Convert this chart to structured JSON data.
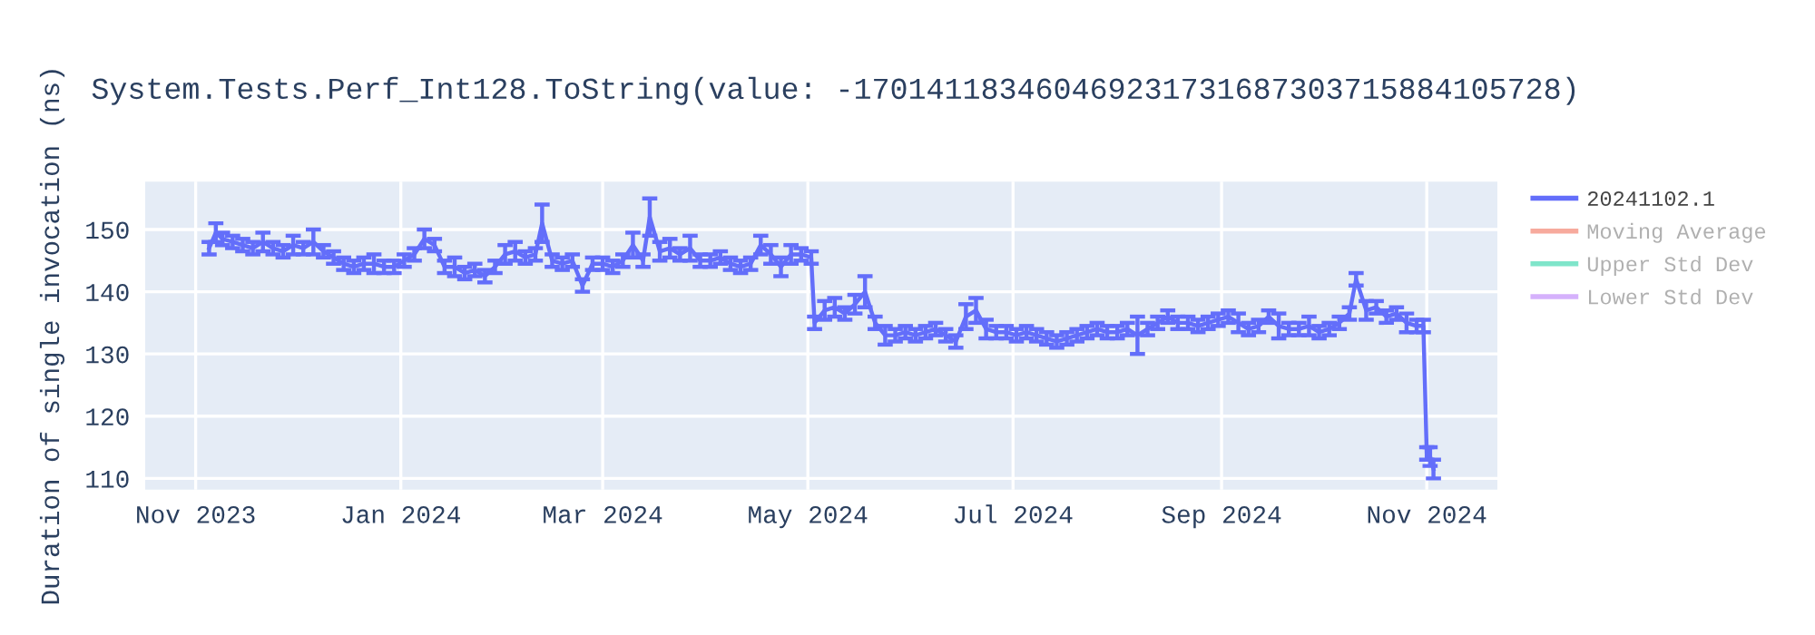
{
  "chart_data": {
    "type": "line",
    "title": "System.Tests.Perf_Int128.ToString(value: -170141183460469231731687303715884105728)",
    "ylabel": "Duration of single invocation (ns)",
    "x": [
      "2023-11-05",
      "2023-11-07",
      "2023-11-09",
      "2023-11-12",
      "2023-11-15",
      "2023-11-18",
      "2023-11-21",
      "2023-11-24",
      "2023-11-27",
      "2023-11-30",
      "2023-12-03",
      "2023-12-06",
      "2023-12-09",
      "2023-12-12",
      "2023-12-15",
      "2023-12-18",
      "2023-12-21",
      "2023-12-24",
      "2023-12-27",
      "2023-12-30",
      "2024-01-02",
      "2024-01-05",
      "2024-01-08",
      "2024-01-11",
      "2024-01-14",
      "2024-01-17",
      "2024-01-20",
      "2024-01-23",
      "2024-01-26",
      "2024-01-29",
      "2024-02-01",
      "2024-02-04",
      "2024-02-07",
      "2024-02-10",
      "2024-02-12",
      "2024-02-15",
      "2024-02-18",
      "2024-02-21",
      "2024-02-24",
      "2024-02-27",
      "2024-03-01",
      "2024-03-04",
      "2024-03-07",
      "2024-03-10",
      "2024-03-13",
      "2024-03-15",
      "2024-03-18",
      "2024-03-21",
      "2024-03-24",
      "2024-03-27",
      "2024-03-30",
      "2024-04-02",
      "2024-04-05",
      "2024-04-08",
      "2024-04-11",
      "2024-04-14",
      "2024-04-17",
      "2024-04-20",
      "2024-04-23",
      "2024-04-26",
      "2024-04-29",
      "2024-05-02",
      "2024-05-03",
      "2024-05-06",
      "2024-05-09",
      "2024-05-12",
      "2024-05-15",
      "2024-05-18",
      "2024-05-21",
      "2024-05-24",
      "2024-05-27",
      "2024-05-30",
      "2024-06-02",
      "2024-06-05",
      "2024-06-08",
      "2024-06-11",
      "2024-06-14",
      "2024-06-17",
      "2024-06-20",
      "2024-06-23",
      "2024-06-26",
      "2024-06-29",
      "2024-07-02",
      "2024-07-05",
      "2024-07-08",
      "2024-07-11",
      "2024-07-14",
      "2024-07-17",
      "2024-07-20",
      "2024-07-23",
      "2024-07-26",
      "2024-07-29",
      "2024-08-01",
      "2024-08-04",
      "2024-08-07",
      "2024-08-10",
      "2024-08-13",
      "2024-08-16",
      "2024-08-19",
      "2024-08-22",
      "2024-08-25",
      "2024-08-28",
      "2024-08-31",
      "2024-09-03",
      "2024-09-06",
      "2024-09-09",
      "2024-09-12",
      "2024-09-15",
      "2024-09-18",
      "2024-09-21",
      "2024-09-24",
      "2024-09-27",
      "2024-09-30",
      "2024-10-03",
      "2024-10-06",
      "2024-10-09",
      "2024-10-11",
      "2024-10-14",
      "2024-10-17",
      "2024-10-20",
      "2024-10-23",
      "2024-10-26",
      "2024-10-29",
      "2024-10-31",
      "2024-11-01",
      "2024-11-02",
      "2024-11-03"
    ],
    "series": [
      {
        "name": "20241102.1",
        "color": "#636efa",
        "values": [
          147,
          149.5,
          148.5,
          148,
          147.5,
          147,
          148,
          147,
          146.5,
          147.5,
          147,
          148,
          146.5,
          145.5,
          144.5,
          144,
          144.5,
          144.5,
          144,
          144,
          145,
          146,
          148.5,
          147.5,
          144,
          144,
          143,
          143.5,
          142.5,
          144,
          146,
          146.5,
          145.5,
          146,
          151,
          145,
          144.5,
          145,
          141,
          144.5,
          144.5,
          144,
          145,
          147.5,
          145,
          152,
          146.5,
          147,
          146,
          147,
          145,
          145,
          145.5,
          144.5,
          144,
          144.5,
          147.5,
          146,
          144,
          146,
          146,
          145.5,
          135,
          137,
          137.5,
          136.5,
          138,
          140,
          135,
          133,
          133,
          133.5,
          133,
          133.5,
          134,
          133,
          132,
          136,
          137,
          134,
          133.5,
          133.5,
          133,
          133.5,
          133,
          132.5,
          132,
          132.5,
          133,
          133.5,
          134,
          133.5,
          133.5,
          134,
          133,
          134,
          135,
          136,
          135,
          135,
          134.5,
          135,
          135.5,
          136,
          135,
          134,
          134.5,
          136,
          134.5,
          134,
          134,
          134.5,
          133.5,
          134,
          135,
          136.5,
          142,
          137,
          137.5,
          136,
          136.5,
          135,
          134.5,
          134.5,
          114,
          113.5,
          111.5
        ],
        "errors": [
          1,
          1.5,
          1,
          1,
          1,
          1,
          1.5,
          1,
          1,
          1.5,
          1,
          2,
          1,
          1,
          1,
          1,
          1,
          1.5,
          1,
          1,
          1,
          1,
          1.5,
          1,
          1,
          1.5,
          1,
          1,
          1,
          1,
          1.5,
          1.5,
          1,
          1,
          3,
          1,
          1,
          1,
          1,
          1,
          1,
          1,
          1,
          2,
          1,
          3,
          1.5,
          1.5,
          1,
          2,
          1,
          1,
          1,
          1,
          1,
          1,
          1.5,
          1.5,
          1.5,
          1.5,
          1,
          1,
          1,
          1.5,
          1.5,
          1,
          1.5,
          2.5,
          1,
          1.5,
          1,
          1,
          1,
          1,
          1,
          1,
          1,
          2,
          2,
          1.5,
          1,
          1,
          1,
          1,
          1,
          1,
          1,
          1,
          1,
          1,
          1,
          1,
          1,
          1,
          3,
          1,
          1,
          1,
          1,
          1,
          1,
          1,
          1,
          1,
          1.5,
          1,
          1,
          1,
          2,
          1,
          1,
          1.5,
          1,
          1,
          1,
          1,
          1,
          1.5,
          1,
          1,
          1,
          1.5,
          1,
          1,
          1,
          1.5,
          1.5
        ]
      },
      {
        "name": "Moving Average",
        "color": "#ef553b",
        "values": [
          null,
          null,
          null,
          null,
          null,
          null,
          null,
          null,
          null,
          null,
          null,
          null,
          null,
          null,
          null,
          null,
          null,
          null,
          null,
          null,
          null,
          null,
          null,
          null,
          null,
          null,
          null,
          null,
          null,
          null,
          null,
          null,
          null,
          null,
          null,
          null,
          null,
          null,
          null,
          null,
          null,
          null,
          null,
          null,
          null,
          null,
          null,
          null,
          null,
          null,
          null,
          null,
          null,
          null,
          null,
          null,
          null,
          null,
          null,
          null,
          null,
          null,
          null,
          null,
          null,
          null,
          null,
          null,
          null,
          null,
          null,
          null,
          null,
          null,
          null,
          null,
          null,
          null,
          null,
          null,
          null,
          null,
          null,
          null,
          null,
          null,
          null,
          null,
          null,
          null,
          null,
          null,
          null,
          null,
          null,
          null,
          null,
          null,
          null,
          null,
          null,
          null,
          null,
          null,
          null,
          null,
          null,
          null,
          null,
          null,
          null,
          null,
          null,
          null,
          null,
          null,
          null,
          null,
          null,
          null,
          null,
          null,
          null,
          null,
          null,
          null,
          null
        ]
      },
      {
        "name": "Upper Std Dev",
        "color": "#00cc96",
        "values": [
          null,
          null,
          null,
          null,
          null,
          null,
          null,
          null,
          null,
          null,
          null,
          null,
          null,
          null,
          null,
          null,
          null,
          null,
          null,
          null,
          null,
          null,
          null,
          null,
          null,
          null,
          null,
          null,
          null,
          null,
          null,
          null,
          null,
          null,
          null,
          null,
          null,
          null,
          null,
          null,
          null,
          null,
          null,
          null,
          null,
          null,
          null,
          null,
          null,
          null,
          null,
          null,
          null,
          null,
          null,
          null,
          null,
          null,
          null,
          null,
          null,
          null,
          null,
          null,
          null,
          null,
          null,
          null,
          null,
          null,
          null,
          null,
          null,
          null,
          null,
          null,
          null,
          null,
          null,
          null,
          null,
          null,
          null,
          null,
          null,
          null,
          null,
          null,
          null,
          null,
          null,
          null,
          null,
          null,
          null,
          null,
          null,
          null,
          null,
          null,
          null,
          null,
          null,
          null,
          null,
          null,
          null,
          null,
          null,
          null,
          null,
          null,
          null,
          null,
          null,
          null,
          null,
          null,
          null,
          null,
          null,
          null,
          null,
          null,
          null,
          null,
          null
        ]
      },
      {
        "name": "Lower Std Dev",
        "color": "#ab63fa",
        "values": [
          null,
          null,
          null,
          null,
          null,
          null,
          null,
          null,
          null,
          null,
          null,
          null,
          null,
          null,
          null,
          null,
          null,
          null,
          null,
          null,
          null,
          null,
          null,
          null,
          null,
          null,
          null,
          null,
          null,
          null,
          null,
          null,
          null,
          null,
          null,
          null,
          null,
          null,
          null,
          null,
          null,
          null,
          null,
          null,
          null,
          null,
          null,
          null,
          null,
          null,
          null,
          null,
          null,
          null,
          null,
          null,
          null,
          null,
          null,
          null,
          null,
          null,
          null,
          null,
          null,
          null,
          null,
          null,
          null,
          null,
          null,
          null,
          null,
          null,
          null,
          null,
          null,
          null,
          null,
          null,
          null,
          null,
          null,
          null,
          null,
          null,
          null,
          null,
          null,
          null,
          null,
          null,
          null,
          null,
          null,
          null,
          null,
          null,
          null,
          null,
          null,
          null,
          null,
          null,
          null,
          null,
          null,
          null,
          null,
          null,
          null,
          null,
          null,
          null,
          null,
          null,
          null,
          null,
          null,
          null,
          null,
          null,
          null,
          null,
          null,
          null,
          null
        ]
      }
    ],
    "xlim": [
      "2023-10-17",
      "2024-11-22"
    ],
    "xticks": [
      {
        "value": "2023-11-01",
        "label": "Nov 2023"
      },
      {
        "value": "2024-01-01",
        "label": "Jan 2024"
      },
      {
        "value": "2024-03-01",
        "label": "Mar 2024"
      },
      {
        "value": "2024-05-01",
        "label": "May 2024"
      },
      {
        "value": "2024-07-01",
        "label": "Jul 2024"
      },
      {
        "value": "2024-09-01",
        "label": "Sep 2024"
      },
      {
        "value": "2024-11-01",
        "label": "Nov 2024"
      }
    ],
    "ylim": [
      108.2,
      157.7
    ],
    "yticks": [
      110,
      120,
      130,
      140,
      150
    ],
    "grid": true,
    "legend": "right",
    "marker": "none",
    "line_style": "solid"
  }
}
